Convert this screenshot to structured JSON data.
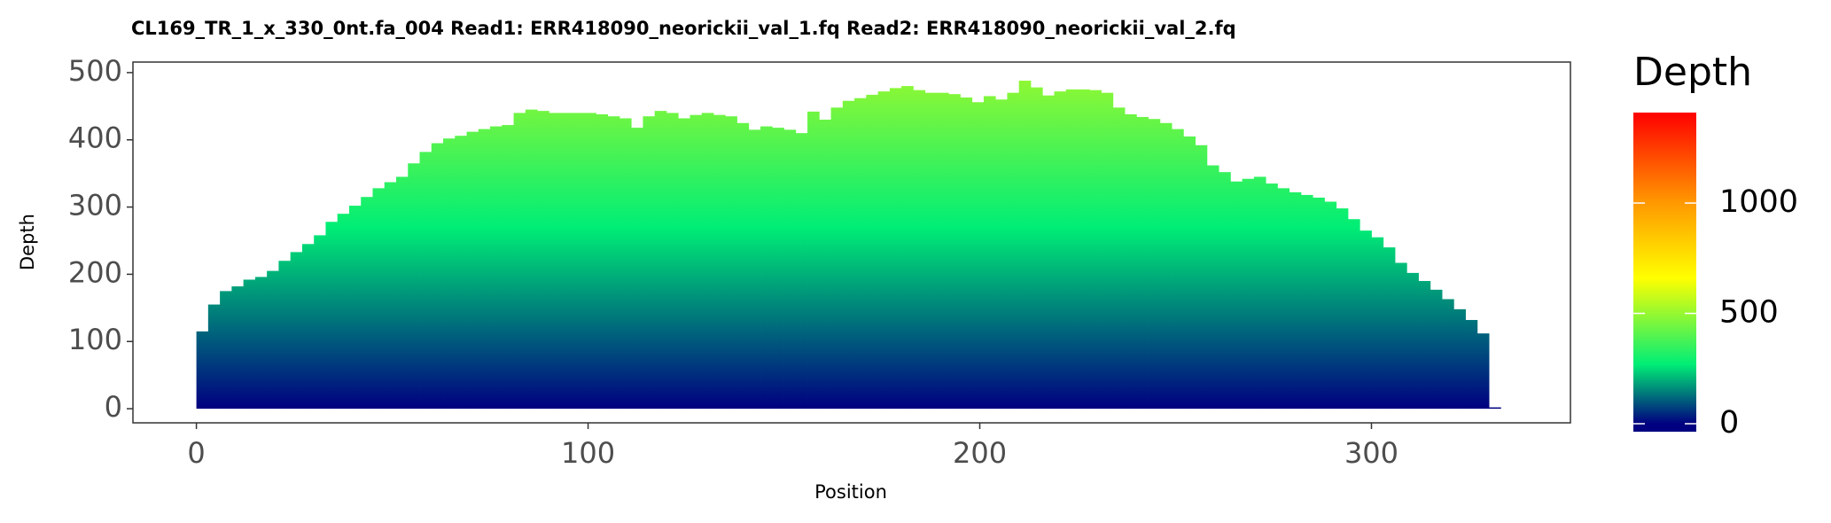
{
  "chart_data": {
    "type": "histogram",
    "title": "CL169_TR_1_x_330_0nt.fa_004   Read1: ERR418090_neorickii_val_1.fq   Read2: ERR418090_neorickii_val_2.fq",
    "xlabel": "Position",
    "ylabel": "Depth",
    "legend_title": "Depth",
    "bins": [
      0,
      3,
      6,
      9,
      12,
      15,
      18,
      21,
      24,
      27,
      30,
      33,
      36,
      39,
      42,
      45,
      48,
      51,
      54,
      57,
      60,
      63,
      66,
      69,
      72,
      75,
      78,
      81,
      84,
      87,
      90,
      93,
      96,
      99,
      102,
      105,
      108,
      111,
      114,
      117,
      120,
      123,
      126,
      129,
      132,
      135,
      138,
      141,
      144,
      147,
      150,
      153,
      156,
      159,
      162,
      165,
      168,
      171,
      174,
      177,
      180,
      183,
      186,
      189,
      192,
      195,
      198,
      201,
      204,
      207,
      210,
      213,
      216,
      219,
      222,
      225,
      228,
      231,
      234,
      237,
      240,
      243,
      246,
      249,
      252,
      255,
      258,
      261,
      264,
      267,
      270,
      273,
      276,
      279,
      282,
      285,
      288,
      291,
      294,
      297,
      300,
      303,
      306,
      309,
      312,
      315,
      318,
      321,
      324,
      327,
      330,
      333
    ],
    "values": [
      115,
      155,
      175,
      182,
      192,
      196,
      205,
      220,
      233,
      245,
      258,
      278,
      290,
      302,
      315,
      328,
      337,
      345,
      365,
      382,
      395,
      402,
      406,
      412,
      416,
      420,
      422,
      440,
      445,
      443,
      440,
      440,
      440,
      440,
      438,
      435,
      432,
      418,
      435,
      443,
      440,
      432,
      437,
      440,
      437,
      435,
      425,
      415,
      420,
      418,
      415,
      410,
      442,
      430,
      448,
      458,
      462,
      467,
      472,
      477,
      480,
      474,
      470,
      470,
      468,
      463,
      456,
      465,
      460,
      470,
      488,
      478,
      466,
      472,
      475,
      475,
      474,
      470,
      448,
      438,
      434,
      431,
      425,
      416,
      405,
      392,
      362,
      352,
      338,
      342,
      345,
      335,
      328,
      322,
      318,
      314,
      308,
      298,
      282,
      265,
      255,
      240,
      217,
      202,
      190,
      177,
      163,
      148,
      132,
      112,
      2
    ],
    "xlim": [
      -16.2,
      350.8
    ],
    "xticks": [
      0,
      100,
      200,
      300
    ],
    "ylim": [
      -21,
      515.7
    ],
    "yticks": [
      0,
      100,
      200,
      300,
      400,
      500
    ],
    "grid": false,
    "color_lim": [
      0,
      1410
    ],
    "color_ticks": [
      0,
      500,
      1000
    ],
    "color_stops": [
      {
        "value": 0,
        "color": "#000080"
      },
      {
        "value": 270,
        "color": "#00EE76"
      },
      {
        "value": 660,
        "color": "#FFFF00"
      },
      {
        "value": 1000,
        "color": "#FF9900"
      },
      {
        "value": 1410,
        "color": "#FF0000"
      }
    ]
  }
}
